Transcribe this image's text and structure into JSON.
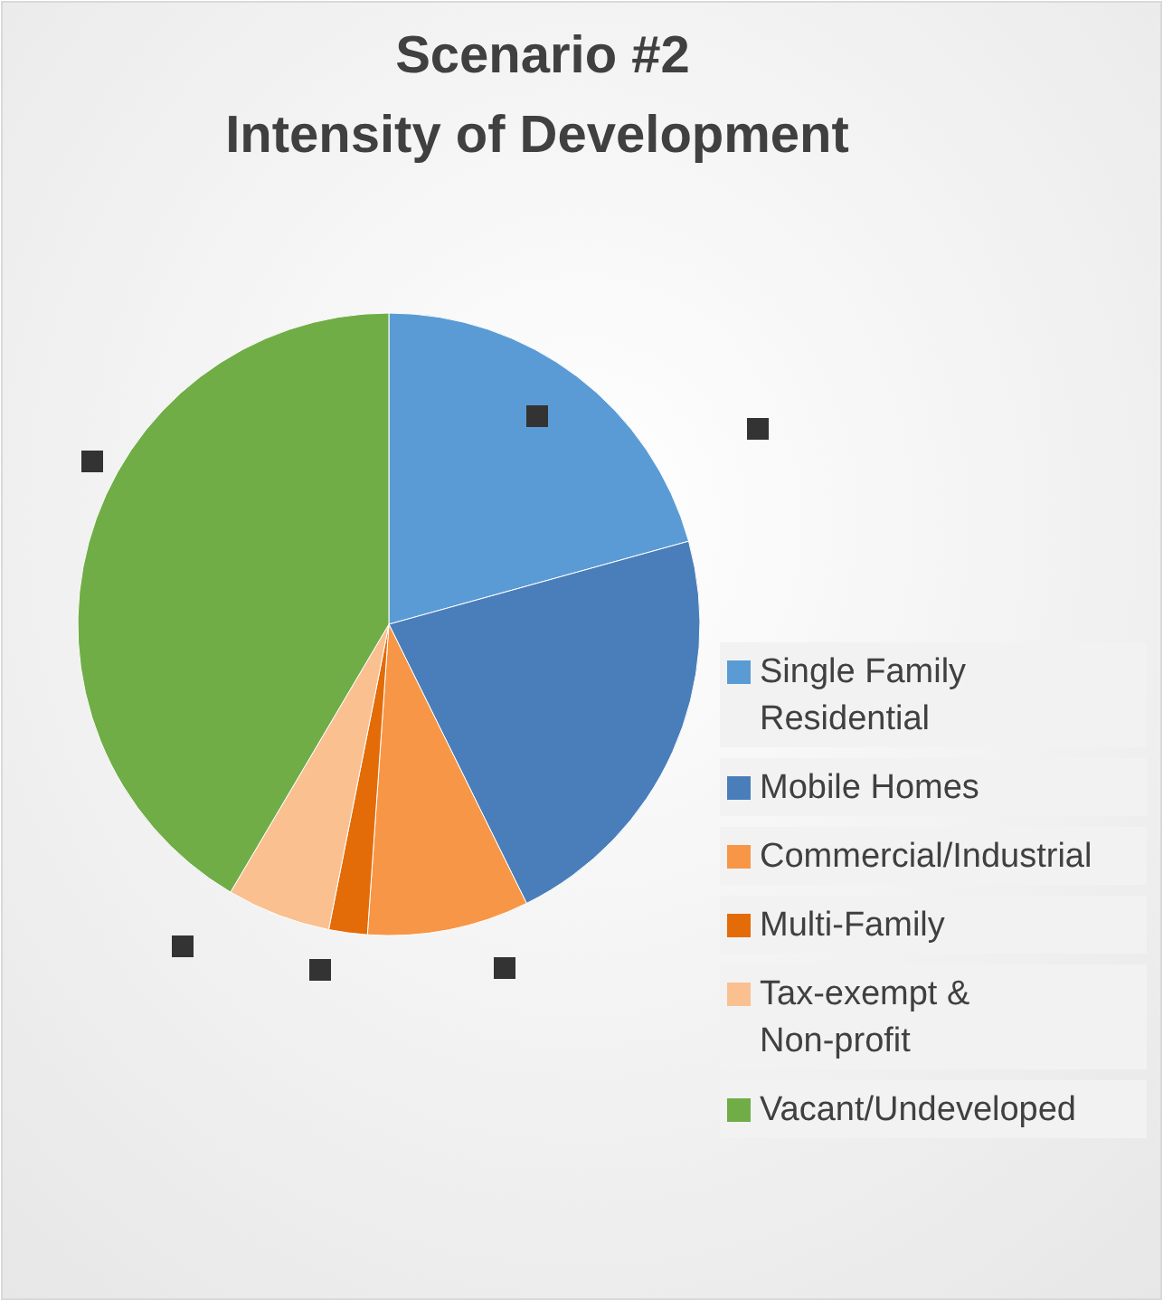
{
  "chart_data": {
    "type": "pie",
    "title": "Scenario #2",
    "subtitle": "Intensity of Development",
    "categories": [
      "Single Family Residential",
      "Mobile Homes",
      "Commercial/Industrial",
      "Multi-Family",
      "Tax-exempt & Non-profit",
      "Vacant/Undeveloped"
    ],
    "values": [
      20.7,
      22,
      8.4,
      2,
      5.4,
      41.5
    ],
    "colors": [
      "#5b9bd5",
      "#4a7ebb",
      "#f79646",
      "#e36c09",
      "#fac090",
      "#70ad47"
    ],
    "legend": "right"
  }
}
